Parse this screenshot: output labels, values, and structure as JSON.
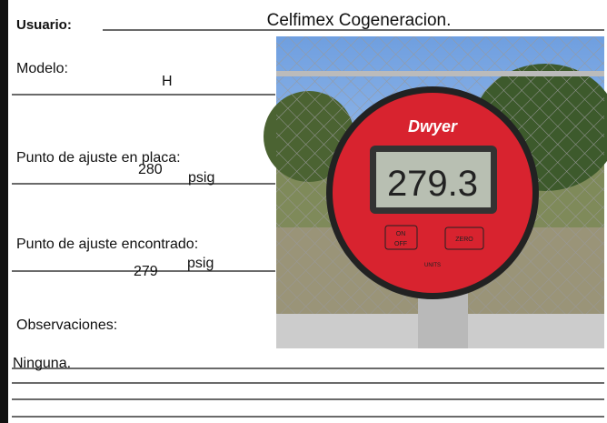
{
  "form": {
    "user_label": "Usuario:",
    "user_value": "Celfimex Cogeneracion.",
    "model_label": "Modelo:",
    "model_value": "H",
    "plate_label": "Punto de ajuste en placa:",
    "plate_value": "280",
    "plate_unit": "psig",
    "found_label": "Punto de ajuste encontrado:",
    "found_value": "279",
    "found_unit": "psig",
    "notes_label": "Observaciones:",
    "notes_value": "Ninguna."
  },
  "photo": {
    "brand": "Dwyer",
    "reading": "279.3",
    "button_1": "ON",
    "button_1b": "OFF",
    "button_2": "ZERO",
    "units": "UNITS"
  }
}
